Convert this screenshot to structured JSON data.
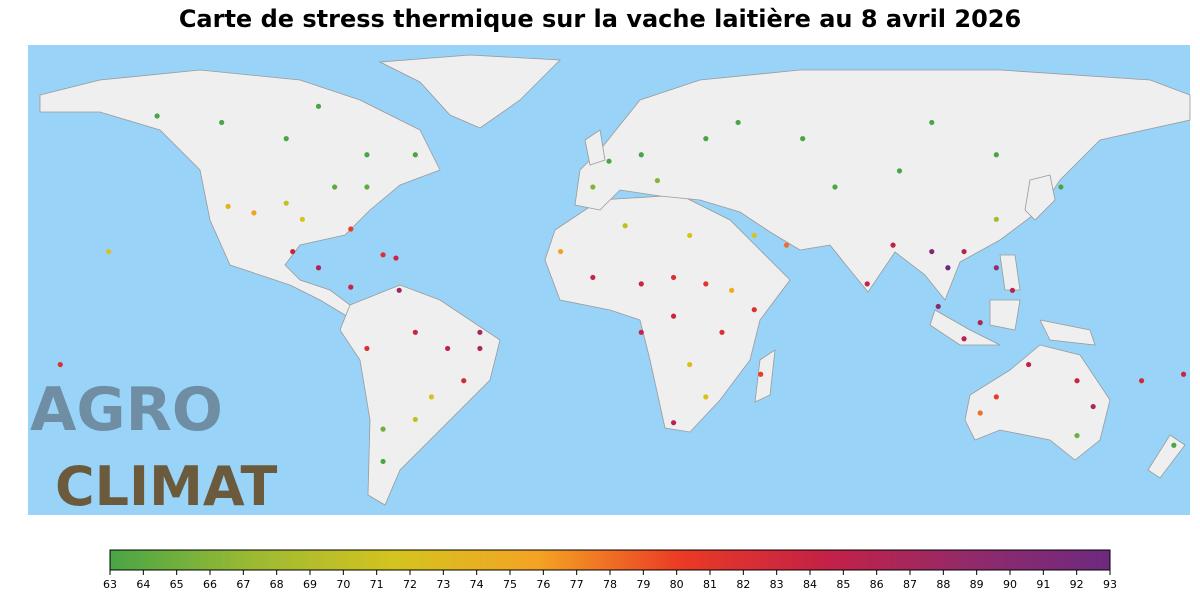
{
  "title": "Carte de stress thermique sur la vache laitière au 8 avril 2026",
  "logo": {
    "top": "AGRO",
    "bottom": "CLIMAT"
  },
  "chart_data": {
    "type": "map",
    "xlim": [
      -180,
      180
    ],
    "ylim": [
      -61.6,
      84
    ],
    "points": {
      "lon": [
        -100,
        -75,
        -120,
        -90,
        -140,
        -60,
        -100,
        -95,
        -85,
        -75,
        -110,
        -118,
        -80,
        -98,
        -90,
        -80,
        -70,
        -66,
        -60,
        -50,
        -40,
        -45,
        -55,
        -60,
        -70,
        -70,
        -75,
        -65,
        -40,
        0,
        10,
        30,
        -5,
        15,
        40,
        60,
        -5,
        10,
        20,
        30,
        -15,
        5,
        25,
        38,
        20,
        35,
        25,
        30,
        20,
        47,
        45,
        10,
        45,
        55,
        70,
        100,
        120,
        90,
        140,
        105,
        100,
        110,
        120,
        102,
        115,
        125,
        110,
        120,
        88,
        80,
        130,
        145,
        150,
        145,
        115,
        120,
        175,
        -155,
        -170,
        165,
        178
      ],
      "lat": [
        55,
        50,
        60,
        65,
        62,
        50,
        35,
        30,
        40,
        40,
        32,
        34,
        27,
        20,
        15,
        9,
        19,
        18,
        -5,
        -10,
        -10,
        -20,
        -25,
        -32,
        -35,
        -45,
        -10,
        8,
        -5,
        48,
        50,
        55,
        40,
        42,
        60,
        55,
        12,
        10,
        12,
        10,
        20,
        28,
        25,
        8,
        0,
        -5,
        -15,
        -25,
        -33,
        -18,
        2,
        -5,
        25,
        22,
        40,
        60,
        50,
        45,
        40,
        15,
        20,
        20,
        15,
        3,
        -2,
        8,
        -7,
        30,
        22,
        10,
        -15,
        -20,
        -28,
        -37,
        -30,
        -25,
        -40,
        20,
        -15,
        -20,
        -18
      ],
      "values": [
        63,
        63,
        63,
        63,
        63,
        63,
        70,
        72,
        64,
        64,
        76,
        74,
        80,
        84,
        86,
        84,
        82,
        84,
        84,
        85,
        86,
        83,
        72,
        70,
        65,
        63,
        82,
        88,
        87,
        63,
        63,
        63,
        66,
        66,
        63,
        63,
        84,
        84,
        82,
        81,
        76,
        70,
        72,
        75,
        84,
        82,
        73,
        72,
        85,
        80,
        82,
        84,
        72,
        78,
        63,
        63,
        63,
        63,
        63,
        93,
        91,
        86,
        88,
        90,
        86,
        85,
        85,
        68,
        85,
        84,
        85,
        84,
        87,
        65,
        78,
        80,
        63,
        72,
        82,
        83,
        84
      ]
    },
    "colorbar": {
      "clim": [
        63,
        93
      ],
      "ticks": [
        63,
        64,
        65,
        66,
        67,
        68,
        69,
        70,
        71,
        72,
        73,
        74,
        75,
        76,
        77,
        78,
        79,
        80,
        81,
        82,
        83,
        84,
        85,
        86,
        87,
        88,
        89,
        90,
        91,
        92,
        93
      ],
      "colors": [
        "#4aa546",
        "#9cba32",
        "#d4c41e",
        "#f4a324",
        "#ea3a25",
        "#c42146",
        "#932a6a",
        "#6d2a7f"
      ]
    },
    "ocean_color": "#99d3f7",
    "land_color": "#efefef"
  }
}
